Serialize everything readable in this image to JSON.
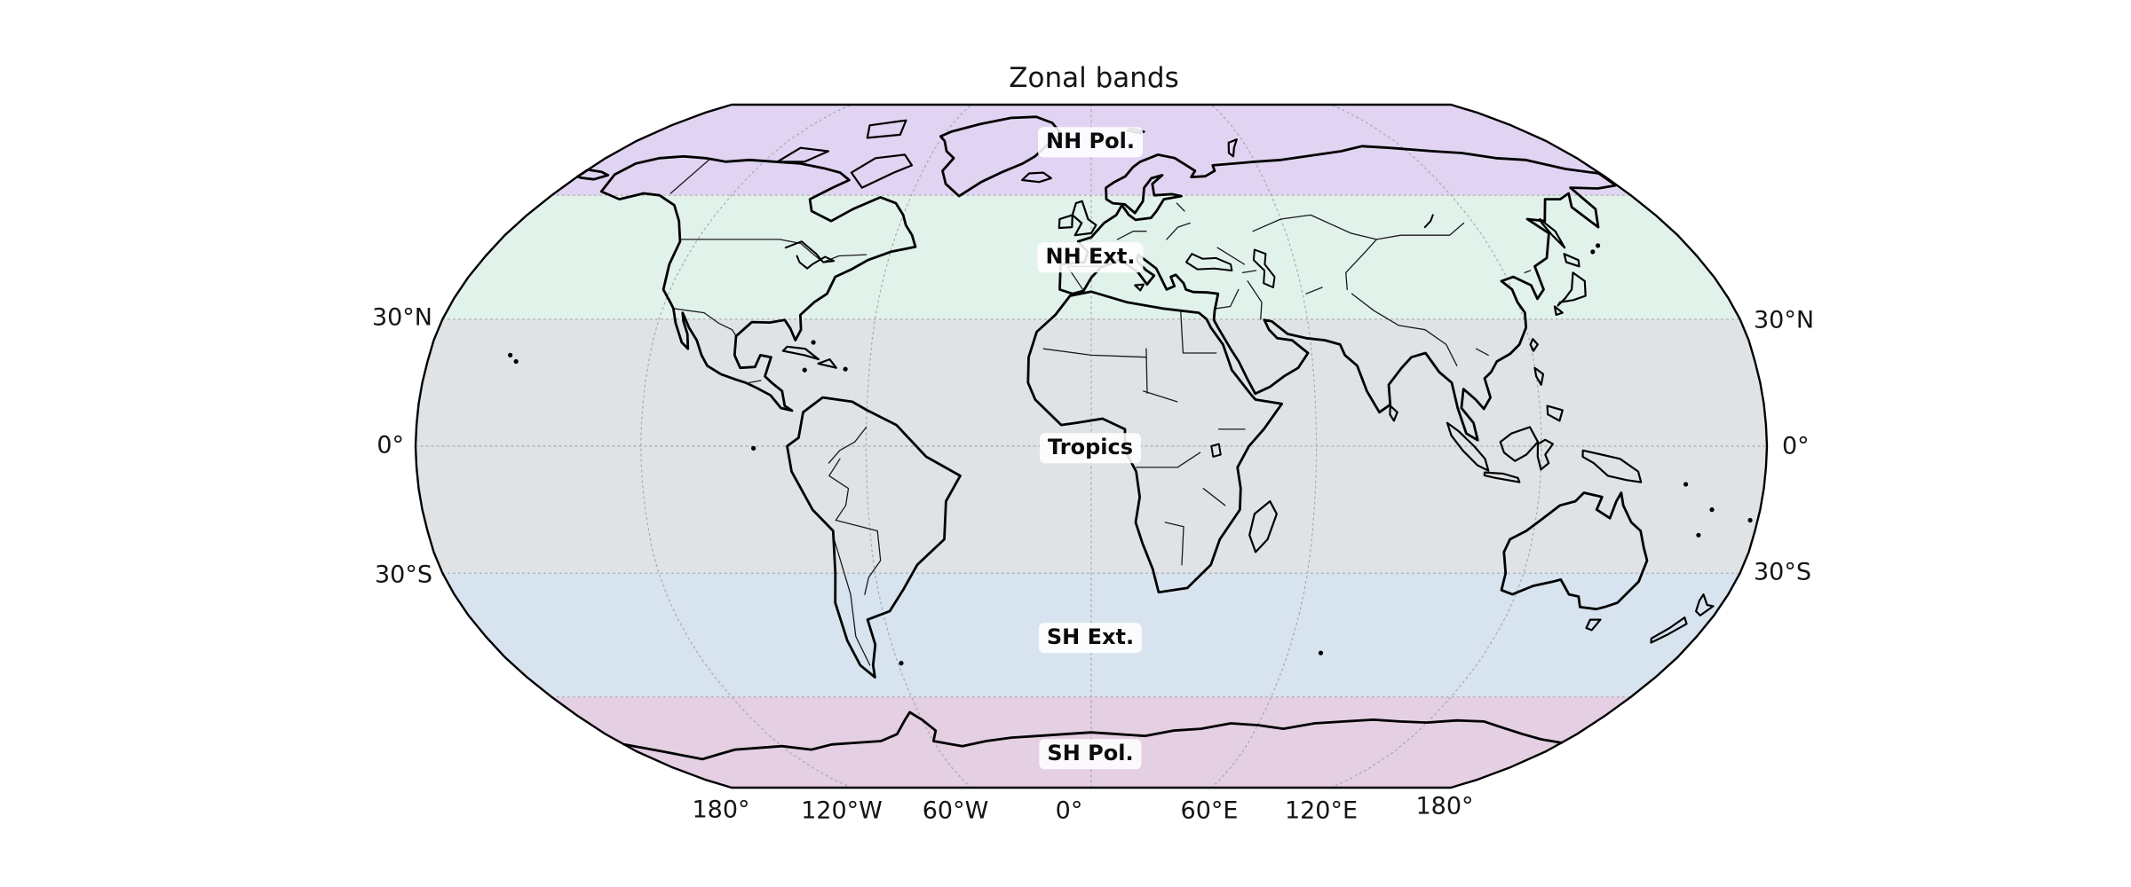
{
  "figure": {
    "title": "Zonal bands"
  },
  "bands": [
    {
      "name": "NH Pol.",
      "color": "#e1d4f2",
      "lat_from": 60,
      "lat_to": 90,
      "label_lat": 75
    },
    {
      "name": "NH Ext.",
      "color": "#e1f2ea",
      "lat_from": 30,
      "lat_to": 60,
      "label_lat": 45
    },
    {
      "name": "Tropics",
      "color": "#e0e3e5",
      "lat_from": -30,
      "lat_to": 30,
      "label_lat": 0
    },
    {
      "name": "SH Ext.",
      "color": "#d7e3ee",
      "lat_from": -60,
      "lat_to": -30,
      "label_lat": -45
    },
    {
      "name": "SH Pol.",
      "color": "#e5cfe3",
      "lat_from": -90,
      "lat_to": -60,
      "label_lat": -75
    }
  ],
  "axes": {
    "left_ticks": [
      "30°N",
      "0°",
      "30°S"
    ],
    "right_ticks": [
      "30°N",
      "0°",
      "30°S"
    ],
    "bottom_ticks": [
      "180°",
      "120°W",
      "60°W",
      "0°",
      "60°E",
      "120°E",
      "180°"
    ],
    "gridline_parallels_deg": [
      60,
      30,
      0,
      -30,
      -60
    ],
    "gridline_meridians_deg": [
      -120,
      -60,
      0,
      60,
      120
    ]
  },
  "map": {
    "outline_color": "#000000",
    "coast_color": "#000000",
    "border_color": "#1a1a1a",
    "grid_color": "#a3a3a3",
    "background": "#ffffff"
  }
}
